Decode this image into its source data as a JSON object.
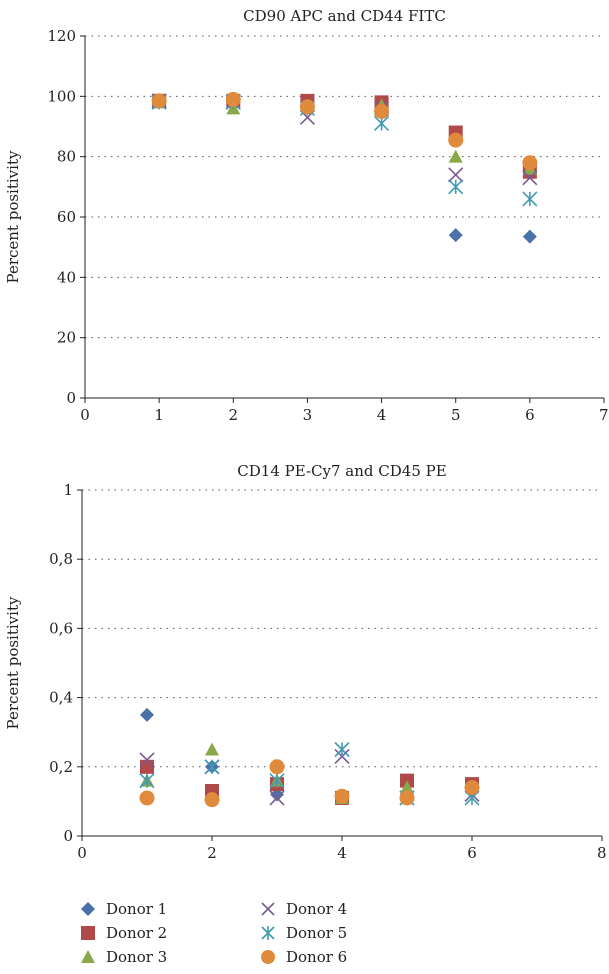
{
  "chart_data": [
    {
      "type": "scatter",
      "title": "CD90 APC and CD44 FITC",
      "xlabel": "",
      "ylabel": "Percent positivity",
      "xlim": [
        0,
        7
      ],
      "ylim": [
        0,
        120
      ],
      "x_ticks": [
        "0",
        "1",
        "2",
        "3",
        "4",
        "5",
        "6",
        "7"
      ],
      "y_ticks": [
        "0",
        "20",
        "40",
        "60",
        "80",
        "100",
        "120"
      ],
      "grid": "horizontal dotted",
      "series": [
        {
          "name": "Donor 1",
          "x": [
            1,
            2,
            3,
            4,
            5,
            6
          ],
          "y": [
            98.5,
            98,
            98,
            97,
            54,
            53.5
          ]
        },
        {
          "name": "Donor 2",
          "x": [
            1,
            2,
            3,
            4,
            5,
            6
          ],
          "y": [
            98.5,
            98.5,
            98.5,
            98,
            88,
            75
          ]
        },
        {
          "name": "Donor 3",
          "x": [
            1,
            2,
            3,
            4,
            5,
            6
          ],
          "y": [
            98,
            96,
            97,
            97,
            80,
            76
          ]
        },
        {
          "name": "Donor 4",
          "x": [
            1,
            2,
            3,
            4,
            5,
            6
          ],
          "y": [
            98.5,
            98,
            93,
            96,
            74,
            73
          ]
        },
        {
          "name": "Donor 5",
          "x": [
            1,
            2,
            3,
            4,
            5,
            6
          ],
          "y": [
            98,
            98,
            96,
            91,
            70,
            66
          ]
        },
        {
          "name": "Donor 6",
          "x": [
            1,
            2,
            3,
            4,
            5,
            6
          ],
          "y": [
            98.5,
            99,
            96.5,
            95,
            85.5,
            78
          ]
        }
      ]
    },
    {
      "type": "scatter",
      "title": "CD14 PE-Cy7 and CD45 PE",
      "xlabel": "",
      "ylabel": "Percent positivity",
      "xlim": [
        0,
        8
      ],
      "ylim": [
        0,
        1
      ],
      "x_ticks": [
        "0",
        "2",
        "4",
        "6",
        "8"
      ],
      "y_ticks": [
        "0",
        "0,2",
        "0,4",
        "0,6",
        "0,8",
        "1"
      ],
      "grid": "horizontal dotted",
      "series": [
        {
          "name": "Donor 1",
          "x": [
            1,
            2,
            3,
            4,
            5,
            6
          ],
          "y": [
            0.35,
            0.2,
            0.12,
            0.11,
            0.12,
            0.13
          ]
        },
        {
          "name": "Donor 2",
          "x": [
            1,
            2,
            3,
            4,
            5,
            6
          ],
          "y": [
            0.2,
            0.13,
            0.15,
            0.11,
            0.16,
            0.15
          ]
        },
        {
          "name": "Donor 3",
          "x": [
            1,
            2,
            3,
            4,
            5,
            6
          ],
          "y": [
            0.16,
            0.25,
            0.16,
            0.11,
            0.14,
            0.14
          ]
        },
        {
          "name": "Donor 4",
          "x": [
            1,
            2,
            3,
            4,
            5,
            6
          ],
          "y": [
            0.22,
            0.2,
            0.11,
            0.23,
            0.11,
            0.12
          ]
        },
        {
          "name": "Donor 5",
          "x": [
            1,
            2,
            3,
            4,
            5,
            6
          ],
          "y": [
            0.16,
            0.2,
            0.16,
            0.25,
            0.11,
            0.11
          ]
        },
        {
          "name": "Donor 6",
          "x": [
            1,
            2,
            3,
            4,
            5,
            6
          ],
          "y": [
            0.11,
            0.105,
            0.2,
            0.115,
            0.11,
            0.14
          ]
        }
      ]
    }
  ],
  "legend": [
    {
      "label": "Donor 1",
      "marker": "diamond",
      "color": "#4a72a8"
    },
    {
      "label": "Donor 2",
      "marker": "square",
      "color": "#b04a4a"
    },
    {
      "label": "Donor 3",
      "marker": "triangle",
      "color": "#8aa84a"
    },
    {
      "label": "Donor 4",
      "marker": "x",
      "color": "#7a5a92"
    },
    {
      "label": "Donor 5",
      "marker": "star",
      "color": "#3f9ab3"
    },
    {
      "label": "Donor 6",
      "marker": "circle",
      "color": "#e08a3c"
    }
  ]
}
